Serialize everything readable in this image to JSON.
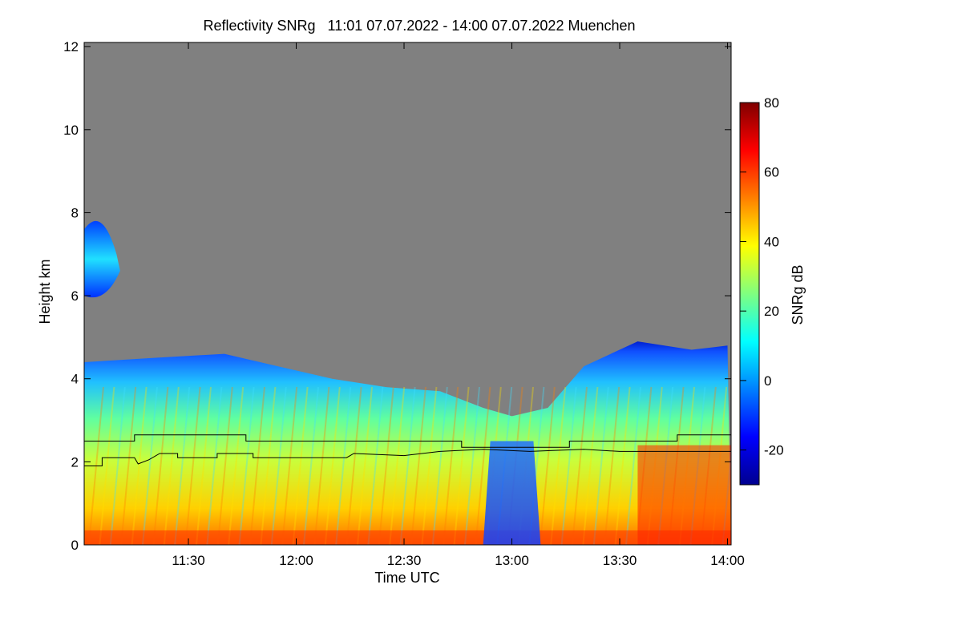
{
  "chart_data": {
    "type": "heatmap",
    "title": "Reflectivity SNRg   11:01 07.07.2022 - 14:00 07.07.2022 Muenchen",
    "xlabel": "Time UTC",
    "ylabel": "Height km",
    "xlim": [
      "11:01",
      "14:01"
    ],
    "ylim": [
      0,
      12.1
    ],
    "x_ticks": [
      "11:30",
      "12:00",
      "12:30",
      "13:00",
      "13:30",
      "14:00"
    ],
    "y_ticks": [
      "0",
      "2",
      "4",
      "6",
      "8",
      "10",
      "12"
    ],
    "colorbar": {
      "label": "SNRg dB",
      "range": [
        -30,
        80
      ],
      "ticks": [
        "-20",
        "0",
        "20",
        "40",
        "60",
        "80"
      ],
      "colormap": [
        "#00008f",
        "#0000ff",
        "#00ffff",
        "#ffff00",
        "#ff0000",
        "#800000"
      ]
    },
    "missing_color": "#808080",
    "cloud_top_km": [
      {
        "time": "11:01",
        "top": 4.4
      },
      {
        "time": "11:20",
        "top": 4.5
      },
      {
        "time": "11:40",
        "top": 4.6
      },
      {
        "time": "11:55",
        "top": 4.3
      },
      {
        "time": "12:10",
        "top": 4.0
      },
      {
        "time": "12:25",
        "top": 3.8
      },
      {
        "time": "12:40",
        "top": 3.7
      },
      {
        "time": "12:52",
        "top": 3.3
      },
      {
        "time": "13:00",
        "top": 3.1
      },
      {
        "time": "13:10",
        "top": 3.3
      },
      {
        "time": "13:20",
        "top": 4.3
      },
      {
        "time": "13:35",
        "top": 4.9
      },
      {
        "time": "13:50",
        "top": 4.7
      },
      {
        "time": "14:00",
        "top": 4.8
      }
    ],
    "upper_cloud": {
      "time_start": "11:01",
      "time_end": "11:10",
      "base_km": 5.8,
      "top_km": 8.2
    },
    "series": [
      {
        "values": [
          {
            "time": "11:01",
            "h": 2.5
          },
          {
            "time": "11:15",
            "h": 2.5
          },
          {
            "time": "11:15",
            "h": 2.65
          },
          {
            "time": "11:46",
            "h": 2.65
          },
          {
            "time": "11:46",
            "h": 2.5
          },
          {
            "time": "12:46",
            "h": 2.5
          },
          {
            "time": "12:46",
            "h": 2.35
          },
          {
            "time": "13:16",
            "h": 2.35
          },
          {
            "time": "13:16",
            "h": 2.5
          },
          {
            "time": "13:46",
            "h": 2.5
          },
          {
            "time": "13:46",
            "h": 2.65
          },
          {
            "time": "14:01",
            "h": 2.65
          }
        ]
      },
      {
        "values": [
          {
            "time": "11:01",
            "h": 1.9
          },
          {
            "time": "11:06",
            "h": 1.9
          },
          {
            "time": "11:06",
            "h": 2.1
          },
          {
            "time": "11:15",
            "h": 2.1
          },
          {
            "time": "11:16",
            "h": 1.95
          },
          {
            "time": "11:19",
            "h": 2.05
          },
          {
            "time": "11:22",
            "h": 2.2
          },
          {
            "time": "11:27",
            "h": 2.2
          },
          {
            "time": "11:27",
            "h": 2.1
          },
          {
            "time": "11:38",
            "h": 2.1
          },
          {
            "time": "11:38",
            "h": 2.2
          },
          {
            "time": "11:48",
            "h": 2.2
          },
          {
            "time": "11:48",
            "h": 2.1
          },
          {
            "time": "12:14",
            "h": 2.1
          },
          {
            "time": "12:16",
            "h": 2.2
          },
          {
            "time": "12:30",
            "h": 2.15
          },
          {
            "time": "12:40",
            "h": 2.25
          },
          {
            "time": "12:52",
            "h": 2.3
          },
          {
            "time": "13:05",
            "h": 2.25
          },
          {
            "time": "13:20",
            "h": 2.3
          },
          {
            "time": "13:30",
            "h": 2.25
          },
          {
            "time": "13:45",
            "h": 2.25
          },
          {
            "time": "14:01",
            "h": 2.25
          }
        ]
      }
    ]
  }
}
